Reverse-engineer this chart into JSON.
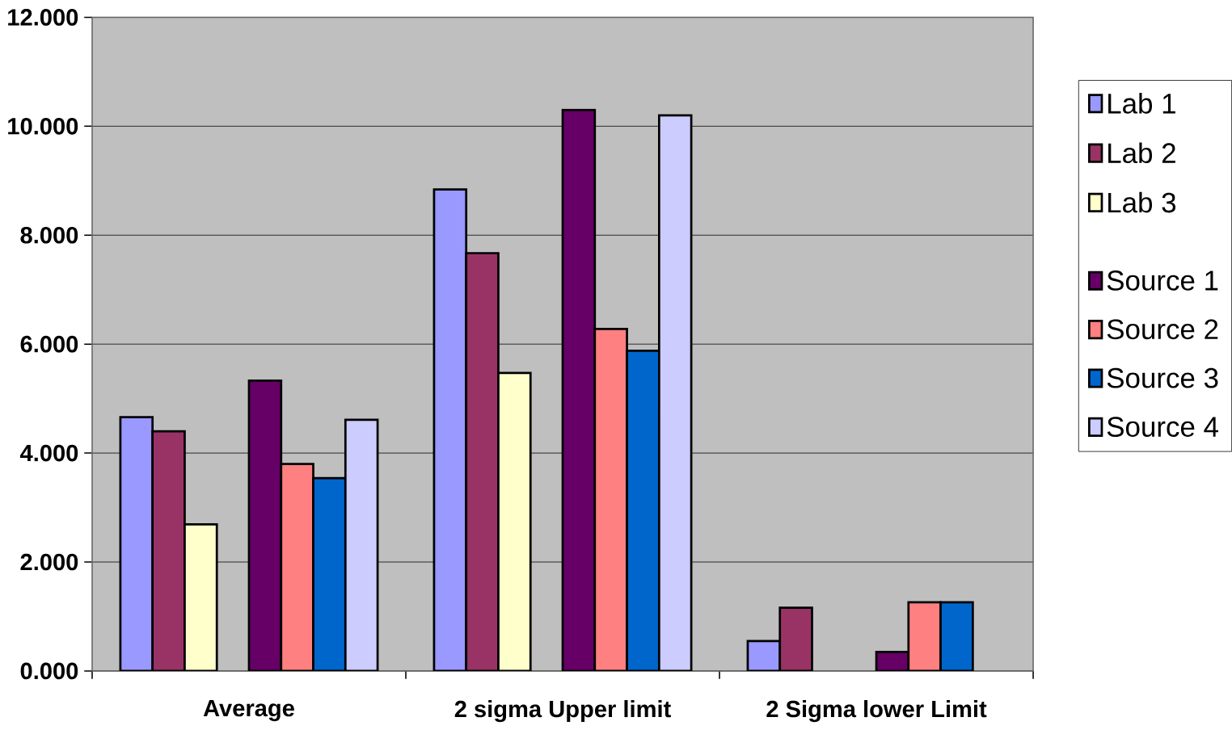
{
  "chart_data": {
    "type": "bar",
    "categories": [
      "Average",
      "2 sigma Upper limit",
      "2 Sigma lower Limit"
    ],
    "series": [
      {
        "name": "Lab 1",
        "color": "#9999ff",
        "values": [
          4.66,
          8.84,
          0.55
        ]
      },
      {
        "name": "Lab 2",
        "color": "#993366",
        "values": [
          4.4,
          7.67,
          1.16
        ]
      },
      {
        "name": "Lab 3",
        "color": "#ffffcc",
        "values": [
          2.69,
          5.47,
          null
        ]
      },
      {
        "values": [
          null,
          null,
          null
        ]
      },
      {
        "name": "Source 1",
        "color": "#660066",
        "values": [
          5.33,
          10.3,
          0.35
        ]
      },
      {
        "name": "Source 2",
        "color": "#ff8080",
        "values": [
          3.8,
          6.28,
          1.26
        ]
      },
      {
        "name": "Source 3",
        "color": "#0066cc",
        "values": [
          3.54,
          5.88,
          1.26
        ]
      },
      {
        "name": "Source 4",
        "color": "#ccccff",
        "values": [
          4.61,
          10.2,
          null
        ]
      }
    ],
    "ylim": [
      0,
      12
    ],
    "yticks": [
      {
        "value": 0,
        "label": "0.000"
      },
      {
        "value": 2,
        "label": "2.000"
      },
      {
        "value": 4,
        "label": "4.000"
      },
      {
        "value": 6,
        "label": "6.000"
      },
      {
        "value": 8,
        "label": "8.000"
      },
      {
        "value": 10,
        "label": "10.000"
      },
      {
        "value": 12,
        "label": "12.000"
      }
    ],
    "grid": "y",
    "legend": "right"
  }
}
